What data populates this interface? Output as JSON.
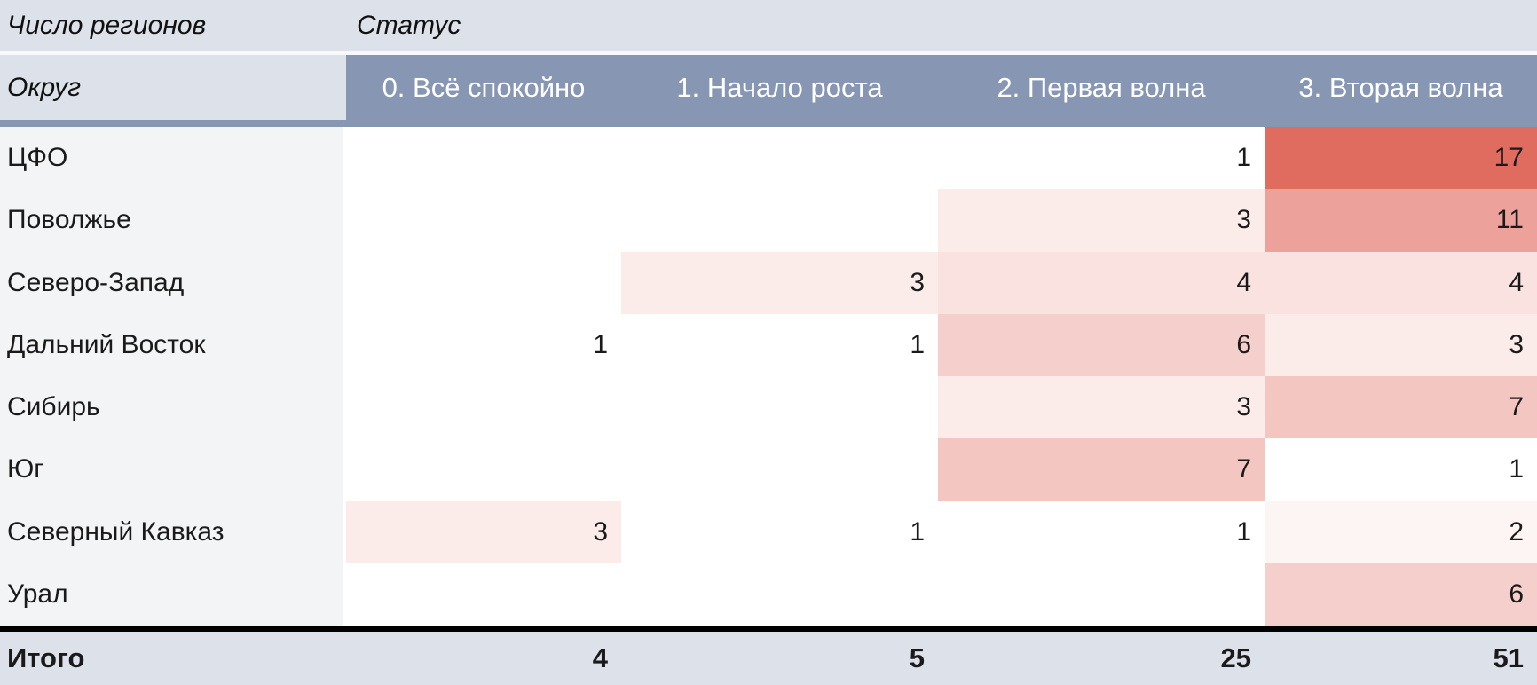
{
  "pivot": {
    "measure_label": "Число регионов",
    "column_field_label": "Статус",
    "row_field_label": "Округ",
    "columns": [
      "0. Всё спокойно",
      "1. Начало роста",
      "2. Первая волна",
      "3. Вторая волна"
    ],
    "rows": [
      {
        "label": "ЦФО",
        "values": [
          "",
          "",
          "1",
          "17"
        ],
        "bg": [
          "#FFFFFF",
          "#FFFFFF",
          "#FFFFFF",
          "#E06C5F"
        ]
      },
      {
        "label": "Поволжье",
        "values": [
          "",
          "",
          "3",
          "11"
        ],
        "bg": [
          "#FFFFFF",
          "#FFFFFF",
          "#FBECEA",
          "#ECA29A"
        ]
      },
      {
        "label": "Северо-Запад",
        "values": [
          "",
          "3",
          "4",
          "4"
        ],
        "bg": [
          "#FFFFFF",
          "#FBECEA",
          "#F9E2E0",
          "#F9E2E0"
        ]
      },
      {
        "label": "Дальний Восток",
        "values": [
          "1",
          "1",
          "6",
          "3"
        ],
        "bg": [
          "#FFFFFF",
          "#FFFFFF",
          "#F5CFCB",
          "#FBECEA"
        ]
      },
      {
        "label": "Сибирь",
        "values": [
          "",
          "",
          "3",
          "7"
        ],
        "bg": [
          "#FFFFFF",
          "#FFFFFF",
          "#FBECEA",
          "#F3C6C1"
        ]
      },
      {
        "label": "Юг",
        "values": [
          "",
          "",
          "7",
          "1"
        ],
        "bg": [
          "#FFFFFF",
          "#FFFFFF",
          "#F3C6C1",
          "#FFFFFF"
        ]
      },
      {
        "label": "Северный Кавказ",
        "values": [
          "3",
          "1",
          "1",
          "2"
        ],
        "bg": [
          "#FBECEA",
          "#FFFFFF",
          "#FFFFFF",
          "#FDF5F4"
        ]
      },
      {
        "label": "Урал",
        "values": [
          "",
          "",
          "",
          "6"
        ],
        "bg": [
          "#FFFFFF",
          "#FFFFFF",
          "#FFFFFF",
          "#F5CFCB"
        ]
      }
    ],
    "total": {
      "label": "Итого",
      "values": [
        "4",
        "5",
        "25",
        "51"
      ]
    }
  },
  "chart_data": {
    "type": "heatmap",
    "title": "Число регионов",
    "x_field": "Статус",
    "y_field": "Округ",
    "columns": [
      "0. Всё спокойно",
      "1. Начало роста",
      "2. Первая волна",
      "3. Вторая волна"
    ],
    "rows": [
      "ЦФО",
      "Поволжье",
      "Северо-Запад",
      "Дальний Восток",
      "Сибирь",
      "Юг",
      "Северный Кавказ",
      "Урал"
    ],
    "values": [
      [
        null,
        null,
        1,
        17
      ],
      [
        null,
        null,
        3,
        11
      ],
      [
        null,
        3,
        4,
        4
      ],
      [
        1,
        1,
        6,
        3
      ],
      [
        null,
        null,
        3,
        7
      ],
      [
        null,
        null,
        7,
        1
      ],
      [
        3,
        1,
        1,
        2
      ],
      [
        null,
        null,
        null,
        6
      ]
    ],
    "column_totals": [
      4,
      5,
      25,
      51
    ],
    "totals_label": "Итого",
    "color_scale": {
      "min_value": 1,
      "max_value": 17,
      "min_color": "#FFFFFF",
      "max_color": "#E06C5F"
    },
    "legend_position": "none",
    "grid": false
  },
  "colors": {
    "header_band_bg": "#dce1ea",
    "column_header_bg": "#8696b3",
    "column_header_text": "#ffffff",
    "row_label_bg": "#f3f4f6",
    "separator": "#8696b3",
    "total_rule": "#000000",
    "footer_bg": "#dce1ea",
    "heat_max": "#E06C5F"
  }
}
